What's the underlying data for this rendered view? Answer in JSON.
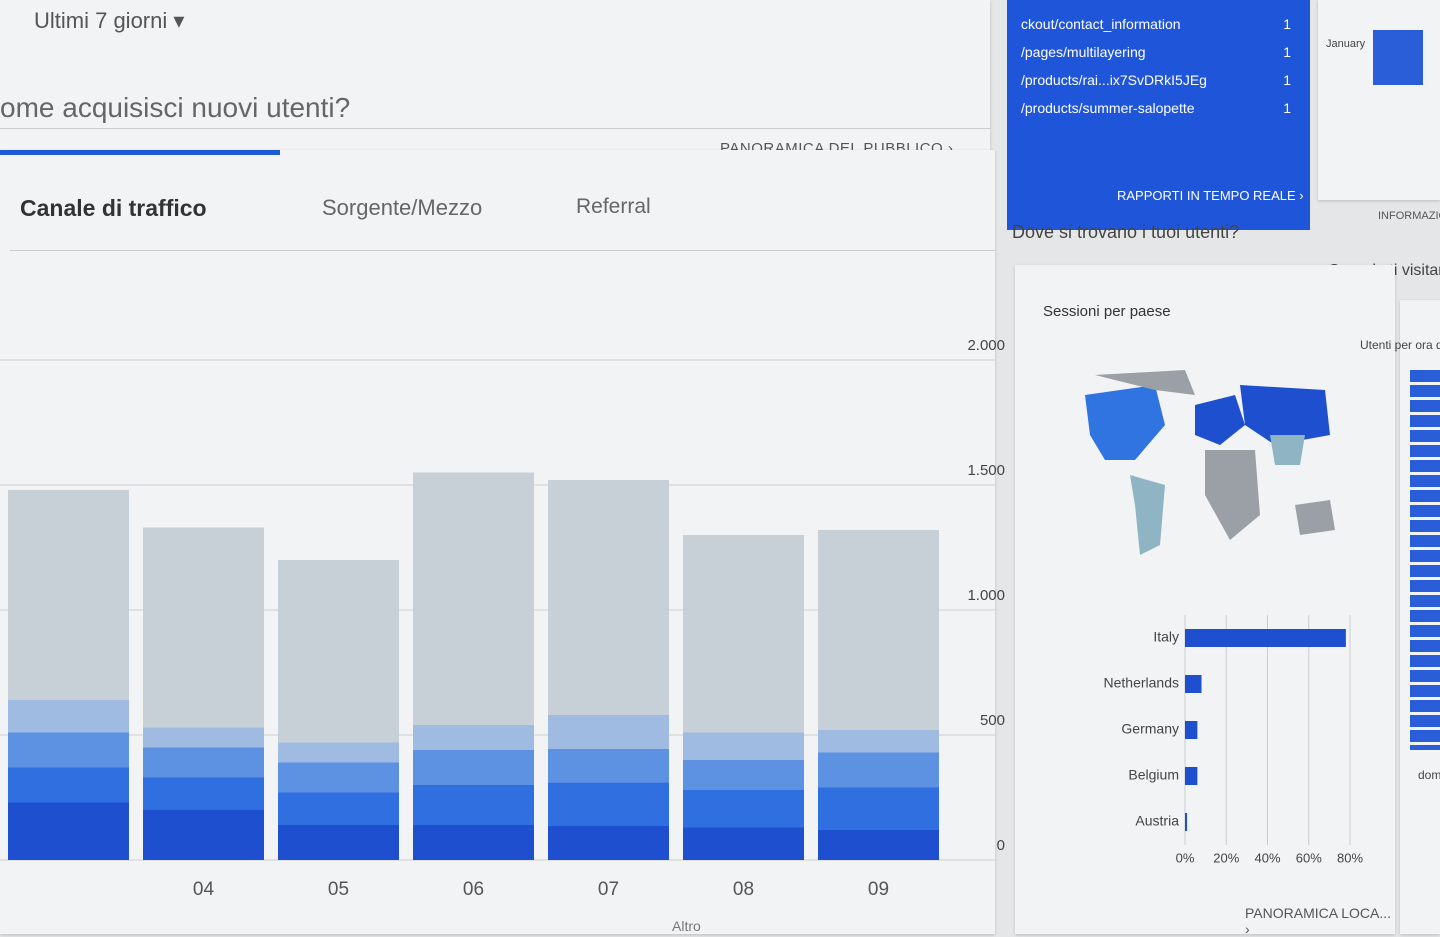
{
  "header": {
    "date_range": "Ultimi 7 giorni",
    "audience_link": "PANORAMICA DEL PUBBLICO"
  },
  "acquisition": {
    "title": "ome acquisisci nuovi utenti?",
    "tabs": [
      "Canale di traffico",
      "Sorgente/Mezzo",
      "Referral"
    ],
    "footer": "Altro"
  },
  "realtime": {
    "rows": [
      {
        "page": "ckout/contact_information",
        "count": "1"
      },
      {
        "page": "/pages/multilayering",
        "count": "1"
      },
      {
        "page": "/products/rai...ix7SvDRkI5JEg",
        "count": "1"
      },
      {
        "page": "/products/summer-salopette",
        "count": "1"
      }
    ],
    "link": "RAPPORTI IN TEMPO REALE"
  },
  "location": {
    "question": "Dove si trovano i tuoi utenti?",
    "link": "PANORAMICA LOCA..."
  },
  "time": {
    "question": "Quando ti visitano",
    "subtitle": "Utenti per ora del",
    "link": "INFORMAZIO",
    "month": "January",
    "day": "dom"
  },
  "chart_data": [
    {
      "type": "stacked-bar",
      "categories": [
        null,
        "04",
        "05",
        "06",
        "07",
        "08",
        "09"
      ],
      "series": [
        {
          "color": "#1d4fcf",
          "values": [
            230,
            200,
            140,
            140,
            136,
            130,
            120
          ]
        },
        {
          "color": "#2f6fe0",
          "values": [
            140,
            130,
            130,
            160,
            175,
            150,
            170
          ]
        },
        {
          "color": "#5d91e2",
          "values": [
            140,
            120,
            120,
            140,
            133,
            120,
            140
          ]
        },
        {
          "color": "#9fbbe2",
          "values": [
            130,
            80,
            80,
            100,
            136,
            110,
            90
          ]
        },
        {
          "color": "#c7cfd7",
          "values": [
            840,
            800,
            730,
            1010,
            940,
            790,
            800
          ]
        }
      ],
      "ylim": [
        0,
        2000
      ],
      "yticks": [
        0,
        500,
        {
          "value": 1000,
          "label": "1.000"
        },
        {
          "value": 1500,
          "label": "1.500"
        },
        {
          "value": 2000,
          "label": "2.000"
        }
      ],
      "grid": true
    },
    {
      "type": "hbar",
      "title": "Sessioni per paese",
      "categories": [
        "Italy",
        "Netherlands",
        "Germany",
        "Belgium",
        "Austria"
      ],
      "values": [
        78,
        8,
        6,
        6,
        1
      ],
      "color": "#1d4fcf",
      "xlim": [
        0,
        80
      ],
      "xticks": [
        {
          "value": 0,
          "label": "0%"
        },
        {
          "value": 20,
          "label": "20%"
        },
        {
          "value": 40,
          "label": "40%"
        },
        {
          "value": 60,
          "label": "60%"
        },
        {
          "value": 80,
          "label": "80%"
        }
      ],
      "grid": true
    }
  ]
}
